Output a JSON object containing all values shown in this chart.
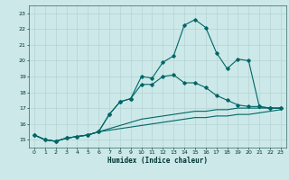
{
  "xlabel": "Humidex (Indice chaleur)",
  "ylabel": "",
  "bg_color": "#cce8e8",
  "grid_color": "#b0d0d0",
  "line_color": "#006666",
  "xlim": [
    -0.5,
    23.5
  ],
  "ylim": [
    14.5,
    23.5
  ],
  "xticks": [
    0,
    1,
    2,
    3,
    4,
    5,
    6,
    7,
    8,
    9,
    10,
    11,
    12,
    13,
    14,
    15,
    16,
    17,
    18,
    19,
    20,
    21,
    22,
    23
  ],
  "yticks": [
    15,
    16,
    17,
    18,
    19,
    20,
    21,
    22,
    23
  ],
  "line1_x": [
    0,
    1,
    2,
    3,
    4,
    5,
    6,
    7,
    8,
    9,
    10,
    11,
    12,
    13,
    14,
    15,
    16,
    17,
    18,
    19,
    20,
    21,
    22,
    23
  ],
  "line1_y": [
    15.3,
    15.0,
    14.9,
    15.1,
    15.2,
    15.3,
    15.5,
    16.6,
    17.4,
    17.6,
    19.0,
    18.9,
    19.9,
    20.3,
    22.25,
    22.6,
    22.1,
    20.5,
    19.5,
    20.1,
    20.0,
    17.1,
    17.0,
    17.0
  ],
  "line2_x": [
    0,
    1,
    2,
    3,
    4,
    5,
    6,
    7,
    8,
    9,
    10,
    11,
    12,
    13,
    14,
    15,
    16,
    17,
    18,
    19,
    20,
    21,
    22,
    23
  ],
  "line2_y": [
    15.3,
    15.0,
    14.9,
    15.1,
    15.2,
    15.3,
    15.5,
    16.6,
    17.4,
    17.6,
    18.5,
    18.5,
    19.0,
    19.1,
    18.6,
    18.6,
    18.3,
    17.8,
    17.5,
    17.2,
    17.1,
    17.1,
    17.0,
    17.0
  ],
  "line3_x": [
    0,
    1,
    2,
    3,
    4,
    5,
    6,
    7,
    8,
    9,
    10,
    11,
    12,
    13,
    14,
    15,
    16,
    17,
    18,
    19,
    20,
    21,
    22,
    23
  ],
  "line3_y": [
    15.3,
    15.0,
    14.9,
    15.1,
    15.2,
    15.3,
    15.5,
    15.7,
    15.9,
    16.1,
    16.3,
    16.4,
    16.5,
    16.6,
    16.7,
    16.8,
    16.8,
    16.9,
    16.9,
    17.0,
    17.0,
    17.0,
    17.0,
    17.0
  ],
  "line4_x": [
    0,
    1,
    2,
    3,
    4,
    5,
    6,
    7,
    8,
    9,
    10,
    11,
    12,
    13,
    14,
    15,
    16,
    17,
    18,
    19,
    20,
    21,
    22,
    23
  ],
  "line4_y": [
    15.3,
    15.0,
    14.9,
    15.1,
    15.2,
    15.3,
    15.5,
    15.6,
    15.7,
    15.8,
    15.9,
    16.0,
    16.1,
    16.2,
    16.3,
    16.4,
    16.4,
    16.5,
    16.5,
    16.6,
    16.6,
    16.7,
    16.8,
    16.9
  ]
}
